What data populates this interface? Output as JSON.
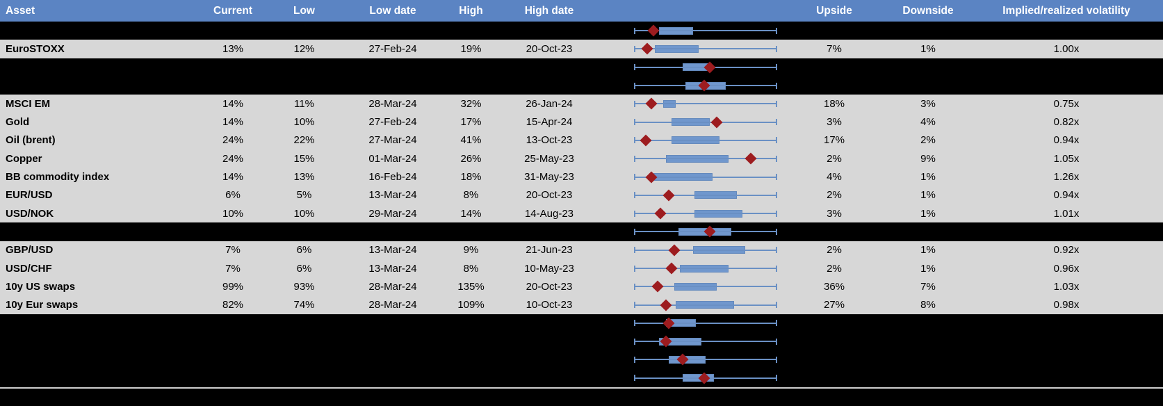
{
  "colors": {
    "header_bg": "#5b84c3",
    "header_text": "#ffffff",
    "row_bg": "#d7d7d7",
    "hidden_row_bg": "#000000",
    "whisker_blue": "#6a90c4",
    "box_blue": "#7097cd",
    "diamond_red": "#9d1c1f",
    "separator_gray": "#cfcfcf"
  },
  "header": {
    "columns": [
      {
        "key": "asset",
        "label": "Asset"
      },
      {
        "key": "current",
        "label": "Current"
      },
      {
        "key": "low",
        "label": "Low"
      },
      {
        "key": "low_date",
        "label": "Low date"
      },
      {
        "key": "high",
        "label": "High"
      },
      {
        "key": "high_date",
        "label": "High date"
      },
      {
        "key": "plot",
        "label": ""
      },
      {
        "key": "upside",
        "label": "Upside"
      },
      {
        "key": "downside",
        "label": "Downside"
      },
      {
        "key": "implied",
        "label": "Implied/realized volatility"
      }
    ]
  },
  "rows": [
    {
      "type": "hidden",
      "plot": {
        "diamond_pct": 13,
        "box_start_pct": 17,
        "box_end_pct": 41
      }
    },
    {
      "type": "data",
      "asset": "EuroSTOXX",
      "current": "13%",
      "low": "12%",
      "low_date": "27-Feb-24",
      "high": "19%",
      "high_date": "20-Oct-23",
      "upside": "7%",
      "downside": "1%",
      "implied": "1.00x",
      "plot": {
        "diamond_pct": 9,
        "box_start_pct": 14,
        "box_end_pct": 45
      }
    },
    {
      "type": "hidden",
      "plot": {
        "diamond_pct": 53,
        "box_start_pct": 34,
        "box_end_pct": 54
      }
    },
    {
      "type": "hidden",
      "plot": {
        "diamond_pct": 49,
        "box_start_pct": 36,
        "box_end_pct": 64
      }
    },
    {
      "type": "data",
      "asset": "MSCI EM",
      "current": "14%",
      "low": "11%",
      "low_date": "28-Mar-24",
      "high": "32%",
      "high_date": "26-Jan-24",
      "upside": "18%",
      "downside": "3%",
      "implied": "0.75x",
      "plot": {
        "diamond_pct": 12,
        "box_start_pct": 20,
        "box_end_pct": 29
      }
    },
    {
      "type": "data",
      "asset": "Gold",
      "current": "14%",
      "low": "10%",
      "low_date": "27-Feb-24",
      "high": "17%",
      "high_date": "15-Apr-24",
      "upside": "3%",
      "downside": "4%",
      "implied": "0.82x",
      "plot": {
        "diamond_pct": 58,
        "box_start_pct": 26,
        "box_end_pct": 53
      }
    },
    {
      "type": "data",
      "asset": "Oil (brent)",
      "current": "24%",
      "low": "22%",
      "low_date": "27-Mar-24",
      "high": "41%",
      "high_date": "13-Oct-23",
      "upside": "17%",
      "downside": "2%",
      "implied": "0.94x",
      "plot": {
        "diamond_pct": 8,
        "box_start_pct": 26,
        "box_end_pct": 60
      }
    },
    {
      "type": "data",
      "asset": "Copper",
      "current": "24%",
      "low": "15%",
      "low_date": "01-Mar-24",
      "high": "26%",
      "high_date": "25-May-23",
      "upside": "2%",
      "downside": "9%",
      "implied": "1.05x",
      "plot": {
        "diamond_pct": 82,
        "box_start_pct": 22,
        "box_end_pct": 66
      }
    },
    {
      "type": "data",
      "asset": "BB commodity index",
      "current": "14%",
      "low": "13%",
      "low_date": "16-Feb-24",
      "high": "18%",
      "high_date": "31-May-23",
      "upside": "4%",
      "downside": "1%",
      "implied": "1.26x",
      "plot": {
        "diamond_pct": 12,
        "box_start_pct": 13,
        "box_end_pct": 55
      }
    },
    {
      "type": "data",
      "asset": "EUR/USD",
      "current": "6%",
      "low": "5%",
      "low_date": "13-Mar-24",
      "high": "8%",
      "high_date": "20-Oct-23",
      "upside": "2%",
      "downside": "1%",
      "implied": "0.94x",
      "plot": {
        "diamond_pct": 24,
        "box_start_pct": 42,
        "box_end_pct": 72
      }
    },
    {
      "type": "data",
      "asset": "USD/NOK",
      "current": "10%",
      "low": "10%",
      "low_date": "29-Mar-24",
      "high": "14%",
      "high_date": "14-Aug-23",
      "upside": "3%",
      "downside": "1%",
      "implied": "1.01x",
      "plot": {
        "diamond_pct": 18,
        "box_start_pct": 42,
        "box_end_pct": 76
      }
    },
    {
      "type": "hidden",
      "plot": {
        "diamond_pct": 53,
        "box_start_pct": 31,
        "box_end_pct": 68
      }
    },
    {
      "type": "data",
      "asset": "GBP/USD",
      "current": "7%",
      "low": "6%",
      "low_date": "13-Mar-24",
      "high": "9%",
      "high_date": "21-Jun-23",
      "upside": "2%",
      "downside": "1%",
      "implied": "0.92x",
      "plot": {
        "diamond_pct": 28,
        "box_start_pct": 41,
        "box_end_pct": 78
      }
    },
    {
      "type": "data",
      "asset": "USD/CHF",
      "current": "7%",
      "low": "6%",
      "low_date": "13-Mar-24",
      "high": "8%",
      "high_date": "10-May-23",
      "upside": "2%",
      "downside": "1%",
      "implied": "0.96x",
      "plot": {
        "diamond_pct": 26,
        "box_start_pct": 32,
        "box_end_pct": 66
      }
    },
    {
      "type": "data",
      "asset": "10y US swaps",
      "current": "99%",
      "low": "93%",
      "low_date": "28-Mar-24",
      "high": "135%",
      "high_date": "20-Oct-23",
      "upside": "36%",
      "downside": "7%",
      "implied": "1.03x",
      "plot": {
        "diamond_pct": 16,
        "box_start_pct": 28,
        "box_end_pct": 58
      }
    },
    {
      "type": "data",
      "asset": "10y Eur swaps",
      "current": "82%",
      "low": "74%",
      "low_date": "28-Mar-24",
      "high": "109%",
      "high_date": "10-Oct-23",
      "upside": "27%",
      "downside": "8%",
      "implied": "0.98x",
      "plot": {
        "diamond_pct": 22,
        "box_start_pct": 29,
        "box_end_pct": 70
      }
    },
    {
      "type": "hidden",
      "plot": {
        "diamond_pct": 24,
        "box_start_pct": 22,
        "box_end_pct": 43
      }
    },
    {
      "type": "hidden",
      "plot": {
        "diamond_pct": 22,
        "box_start_pct": 17,
        "box_end_pct": 47
      }
    },
    {
      "type": "hidden",
      "plot": {
        "diamond_pct": 34,
        "box_start_pct": 24,
        "box_end_pct": 50
      }
    },
    {
      "type": "hidden",
      "plot": {
        "diamond_pct": 49,
        "box_start_pct": 34,
        "box_end_pct": 56
      }
    }
  ]
}
